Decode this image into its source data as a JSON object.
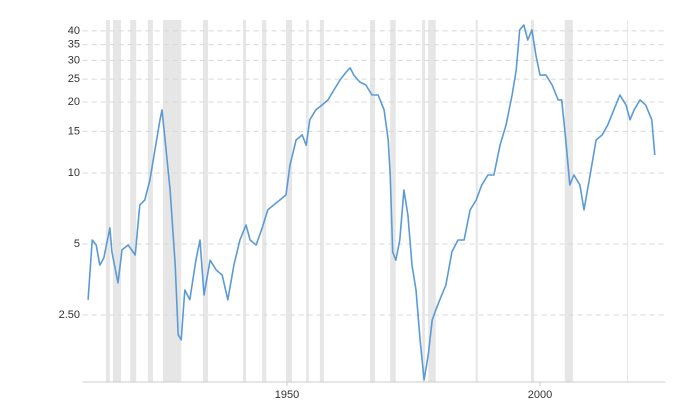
{
  "chart_data": {
    "type": "line",
    "log_y": true,
    "grid": true,
    "color": "#5b9bd5",
    "band_color": "#e6e6e6",
    "xlim": [
      1910,
      2024
    ],
    "xticks": [
      1950,
      2000
    ],
    "ylim": [
      1.3,
      44.5
    ],
    "yticks": [
      {
        "value": 2.5,
        "label": "2.50"
      },
      5,
      10,
      15,
      20,
      25,
      30,
      35,
      40
    ],
    "shaded_ranges": [
      [
        1914.2,
        1915.0
      ],
      [
        1915.6,
        1917.2
      ],
      [
        1919.0,
        1920.2
      ],
      [
        1922.5,
        1923.5
      ],
      [
        1925.5,
        1929.1
      ],
      [
        1933.4,
        1934.4
      ],
      [
        1941.3,
        1941.9
      ],
      [
        1945.1,
        1945.9
      ],
      [
        1949.8,
        1951.0
      ],
      [
        1953.8,
        1954.3
      ],
      [
        1956.5,
        1957.3
      ],
      [
        1966.4,
        1967.4
      ],
      [
        1970.4,
        1971.5
      ],
      [
        1976.7,
        1977.3
      ],
      [
        1977.9,
        1979.4
      ],
      [
        1987.3,
        1987.7
      ],
      [
        1998.2,
        1998.8
      ],
      [
        2004.9,
        2006.5
      ],
      [
        2017.2,
        2017.4
      ]
    ],
    "x": [
      1910.7,
      1911.5,
      1912.3,
      1913.0,
      1913.8,
      1915.0,
      1915.4,
      1916.6,
      1917.4,
      1918.6,
      1920.0,
      1920.9,
      1921.9,
      1922.9,
      1923.9,
      1924.9,
      1925.3,
      1926.1,
      1926.9,
      1927.9,
      1928.5,
      1929.1,
      1929.8,
      1930.8,
      1932.0,
      1932.8,
      1933.6,
      1934.8,
      1936.0,
      1937.2,
      1938.3,
      1939.5,
      1940.7,
      1941.9,
      1942.7,
      1943.9,
      1945.1,
      1946.2,
      1947.4,
      1948.6,
      1949.8,
      1950.6,
      1951.8,
      1953.0,
      1953.8,
      1954.5,
      1955.7,
      1956.9,
      1958.1,
      1959.3,
      1960.5,
      1961.7,
      1962.5,
      1963.2,
      1964.4,
      1965.6,
      1966.8,
      1968.0,
      1969.2,
      1970.0,
      1970.4,
      1970.9,
      1971.5,
      1972.3,
      1973.1,
      1973.9,
      1974.7,
      1975.5,
      1976.3,
      1977.1,
      1977.9,
      1978.7,
      1979.4,
      1980.2,
      1981.4,
      1982.6,
      1983.8,
      1985.0,
      1986.2,
      1987.4,
      1988.5,
      1989.7,
      1990.9,
      1992.1,
      1993.3,
      1994.5,
      1995.3,
      1996.0,
      1996.8,
      1997.6,
      1998.4,
      1999.2,
      2000.0,
      2001.2,
      2002.4,
      2003.6,
      2004.3,
      2005.1,
      2005.9,
      2006.7,
      2007.9,
      2008.7,
      2009.9,
      2011.1,
      2012.3,
      2013.4,
      2014.6,
      2015.8,
      2017.0,
      2017.8,
      2018.6,
      2019.8,
      2020.9,
      2022.1,
      2022.7
    ],
    "values": [
      2.9,
      5.2,
      4.95,
      4.07,
      4.36,
      5.85,
      4.63,
      3.42,
      4.72,
      4.95,
      4.49,
      7.32,
      7.68,
      9.34,
      12.5,
      16.8,
      18.5,
      12.5,
      8.47,
      4.07,
      2.06,
      1.96,
      3.19,
      2.9,
      4.27,
      5.2,
      3.04,
      4.27,
      3.88,
      3.69,
      2.9,
      4.07,
      5.2,
      6.02,
      5.2,
      4.95,
      5.85,
      6.97,
      7.32,
      7.68,
      8.07,
      10.8,
      13.8,
      14.5,
      13.1,
      16.8,
      18.5,
      19.4,
      20.4,
      22.5,
      24.8,
      26.8,
      27.9,
      26.0,
      24.3,
      23.6,
      21.4,
      21.4,
      18.5,
      13.8,
      9.8,
      4.63,
      4.27,
      5.2,
      8.47,
      6.63,
      4.07,
      3.19,
      1.96,
      1.33,
      1.69,
      2.38,
      2.62,
      2.9,
      3.35,
      4.63,
      5.2,
      5.2,
      6.97,
      7.68,
      8.9,
      9.8,
      9.8,
      13.1,
      16.0,
      21.4,
      27.3,
      40.4,
      42.4,
      36.6,
      40.4,
      31.6,
      26.0,
      26.0,
      23.6,
      20.4,
      20.4,
      13.8,
      8.9,
      9.8,
      8.9,
      6.97,
      9.8,
      13.8,
      14.5,
      16.0,
      18.5,
      21.4,
      19.4,
      16.8,
      18.5,
      20.4,
      19.4,
      16.8,
      11.9
    ]
  }
}
